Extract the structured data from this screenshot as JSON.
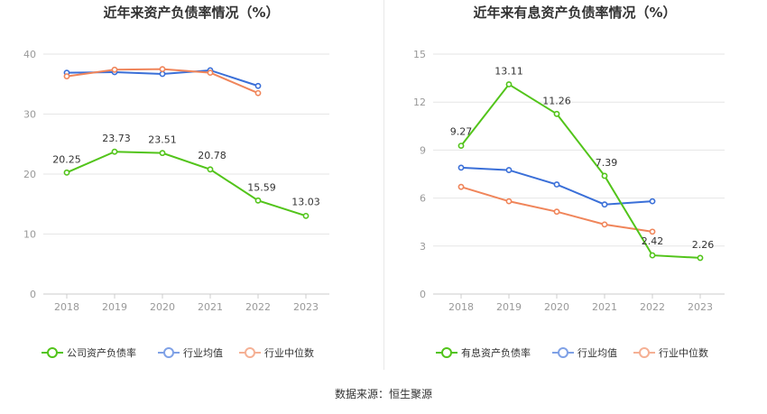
{
  "chart_data": [
    {
      "type": "line",
      "title": "近年来资产负债率情况（%）",
      "categories": [
        "2018",
        "2019",
        "2020",
        "2021",
        "2022",
        "2023"
      ],
      "ylim": [
        0,
        40
      ],
      "yticks": [
        0,
        10,
        20,
        30,
        40
      ],
      "grid": true,
      "legend_placement": "bottom",
      "series": [
        {
          "name": "公司资产负债率",
          "color": "#52c41a",
          "values": [
            20.25,
            23.73,
            23.51,
            20.78,
            15.59,
            13.03
          ],
          "labels": [
            "20.25",
            "23.73",
            "23.51",
            "20.78",
            "15.59",
            "13.03"
          ]
        },
        {
          "name": "行业均值",
          "color": "#3a6fd8",
          "values": [
            36.9,
            37.0,
            36.7,
            37.3,
            34.7,
            null
          ]
        },
        {
          "name": "行业中位数",
          "color": "#f0855a",
          "values": [
            36.3,
            37.4,
            37.5,
            36.9,
            33.5,
            null
          ]
        }
      ]
    },
    {
      "type": "line",
      "title": "近年来有息资产负债率情况（%）",
      "categories": [
        "2018",
        "2019",
        "2020",
        "2021",
        "2022",
        "2023"
      ],
      "ylim": [
        0,
        15
      ],
      "yticks": [
        0,
        3,
        6,
        9,
        12,
        15
      ],
      "grid": true,
      "legend_placement": "bottom",
      "series": [
        {
          "name": "有息资产负债率",
          "color": "#52c41a",
          "values": [
            9.27,
            13.11,
            11.26,
            7.39,
            2.42,
            2.26
          ],
          "labels": [
            "9.27",
            "13.11",
            "11.26",
            "7.39",
            "2.42",
            "2.26"
          ]
        },
        {
          "name": "行业均值",
          "color": "#3a6fd8",
          "values": [
            7.9,
            7.75,
            6.85,
            5.6,
            5.8,
            null
          ]
        },
        {
          "name": "行业中位数",
          "color": "#f0855a",
          "values": [
            6.7,
            5.8,
            5.15,
            4.35,
            3.9,
            null
          ]
        }
      ]
    }
  ],
  "footer": {
    "source": "数据来源：恒生聚源"
  }
}
